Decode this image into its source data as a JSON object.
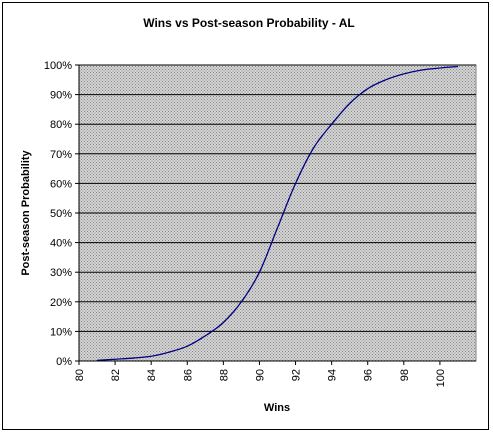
{
  "chart_data": {
    "type": "line",
    "title": "Wins vs Post-season Probability - AL",
    "xlabel": "Wins",
    "ylabel": "Post-season Probability",
    "xlim": [
      80,
      102
    ],
    "ylim": [
      0,
      100
    ],
    "x_ticks": [
      "80",
      "82",
      "84",
      "86",
      "88",
      "90",
      "92",
      "94",
      "96",
      "98",
      "100"
    ],
    "y_ticks": [
      "0%",
      "10%",
      "20%",
      "30%",
      "40%",
      "50%",
      "60%",
      "70%",
      "80%",
      "90%",
      "100%"
    ],
    "grid": true,
    "legend": "none",
    "series": [
      {
        "color": "#000080",
        "x": [
          81,
          82,
          83,
          84,
          85,
          86,
          87,
          88,
          89,
          90,
          91,
          92,
          93,
          94,
          95,
          96,
          97,
          98,
          99,
          100,
          101
        ],
        "y": [
          0.2,
          0.6,
          1.0,
          1.6,
          3.0,
          5.0,
          8.5,
          13.0,
          20.0,
          30.0,
          45.0,
          60.0,
          72.0,
          80.0,
          87.0,
          92.0,
          95.0,
          97.0,
          98.3,
          99.0,
          99.5
        ]
      }
    ]
  },
  "colors": {
    "plot_background": "#c0c0c0",
    "gridline": "#000000",
    "series_line": "#000080"
  }
}
